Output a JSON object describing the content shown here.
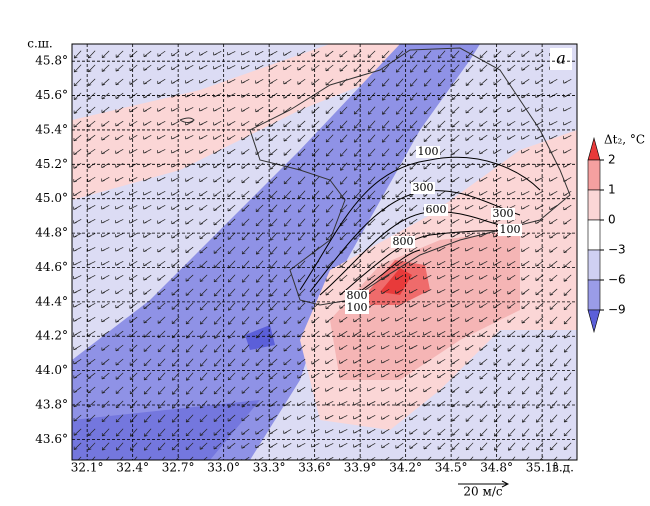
{
  "map": {
    "title": "а",
    "lat_label": "с.ш.",
    "lon_label": "в.д.",
    "xlim": [
      32.0,
      35.33
    ],
    "ylim": [
      43.48,
      45.9
    ],
    "xticks": [
      {
        "value": 32.1,
        "label": "32.1°"
      },
      {
        "value": 32.4,
        "label": "32.4°"
      },
      {
        "value": 32.7,
        "label": "32.7°"
      },
      {
        "value": 33.0,
        "label": "33.0°"
      },
      {
        "value": 33.3,
        "label": "33.3°"
      },
      {
        "value": 33.6,
        "label": "33.6°"
      },
      {
        "value": 33.9,
        "label": "33.9°"
      },
      {
        "value": 34.2,
        "label": "34.2°"
      },
      {
        "value": 34.5,
        "label": "34.5°"
      },
      {
        "value": 34.8,
        "label": "34.8°"
      },
      {
        "value": 35.1,
        "label": "35.1°"
      }
    ],
    "yticks": [
      {
        "value": 43.6,
        "label": "43.6°"
      },
      {
        "value": 43.8,
        "label": "43.8°"
      },
      {
        "value": 44.0,
        "label": "44.0°"
      },
      {
        "value": 44.2,
        "label": "44.2°"
      },
      {
        "value": 44.4,
        "label": "44.4°"
      },
      {
        "value": 44.6,
        "label": "44.6°"
      },
      {
        "value": 44.8,
        "label": "44.8°"
      },
      {
        "value": 45.0,
        "label": "45.0°"
      },
      {
        "value": 45.2,
        "label": "45.2°"
      },
      {
        "value": 45.4,
        "label": "45.4°"
      },
      {
        "value": 45.6,
        "label": "45.6°"
      },
      {
        "value": 45.8,
        "label": "45.8°"
      }
    ],
    "grid": true,
    "colorbar": {
      "label": "Δt₂, °C",
      "ticks": [
        2,
        1,
        0,
        {
          "value": -3,
          "label": "−3"
        },
        {
          "value": -6,
          "label": "−6"
        },
        {
          "value": -9,
          "label": "−9"
        }
      ],
      "colors": [
        "#e83a3a",
        "#f5a0a0",
        "#fbd6d6",
        "#ffffff",
        "#cfd0f2",
        "#9a9ce8",
        "#5b5fd9"
      ]
    },
    "contour_labels": [
      100,
      300,
      600,
      300,
      100,
      800,
      800,
      100
    ],
    "scale_label": "20 м/с"
  }
}
